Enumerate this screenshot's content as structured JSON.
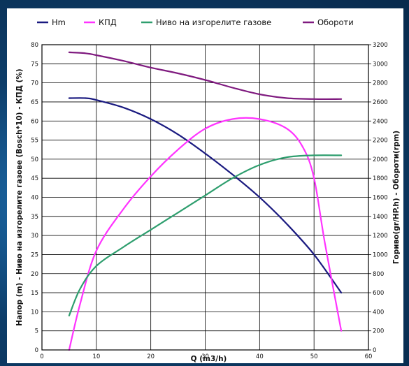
{
  "chart_data": {
    "type": "line",
    "xlabel": "Q (m3/h)",
    "ylabel_left": "Напор (m) - Ниво на изгорелите газове (Bosch*10) - КПД (%)",
    "ylabel_right": "Гориво(gr/HP.h) - Обороти(rpm)",
    "xlim": [
      0,
      60
    ],
    "ylim_left": [
      0,
      80
    ],
    "ylim_right": [
      0,
      3200
    ],
    "x_ticks": [
      "0",
      "10",
      "20",
      "30",
      "40",
      "50",
      "60"
    ],
    "y_ticks_left": [
      "0",
      "5",
      "10",
      "15",
      "20",
      "25",
      "30",
      "35",
      "40",
      "45",
      "50",
      "55",
      "60",
      "65",
      "70",
      "75",
      "80"
    ],
    "y_ticks_right": [
      "0",
      "200",
      "400",
      "600",
      "800",
      "1000",
      "1200",
      "1400",
      "1600",
      "1800",
      "2000",
      "2200",
      "2400",
      "2600",
      "2800",
      "3000",
      "3200"
    ],
    "grid": true,
    "legend_position": "top",
    "series": [
      {
        "name": "Hm",
        "color": "#1a1a80",
        "axis": "left",
        "x": [
          5,
          8,
          10,
          15,
          20,
          25,
          30,
          35,
          40,
          45,
          50,
          55
        ],
        "y": [
          66,
          66,
          65.5,
          63.5,
          60.5,
          56.5,
          51.5,
          46,
          40,
          33,
          25,
          15
        ]
      },
      {
        "name": "КПД",
        "color": "#ff33ff",
        "axis": "left",
        "x": [
          5,
          7,
          10,
          15,
          20,
          25,
          30,
          35,
          40,
          45,
          48,
          50,
          52,
          55
        ],
        "y": [
          0,
          12,
          26,
          37,
          45.5,
          52.5,
          58,
          60.5,
          60.5,
          58,
          53,
          45,
          28,
          5
        ]
      },
      {
        "name": "Ниво на изгорелите газове",
        "color": "#2e9e6e",
        "axis": "left",
        "x": [
          5,
          7,
          10,
          15,
          20,
          25,
          30,
          35,
          40,
          45,
          50,
          55
        ],
        "y": [
          9,
          16,
          22,
          27,
          31.5,
          36,
          40.5,
          45,
          48.5,
          50.5,
          51,
          51
        ]
      },
      {
        "name": "Обороти",
        "color": "#7f1a7f",
        "axis": "right",
        "x": [
          5,
          8,
          10,
          15,
          20,
          25,
          30,
          35,
          40,
          45,
          50,
          55
        ],
        "y": [
          3120,
          3110,
          3090,
          3030,
          2960,
          2900,
          2830,
          2750,
          2680,
          2640,
          2630,
          2630
        ]
      }
    ]
  }
}
